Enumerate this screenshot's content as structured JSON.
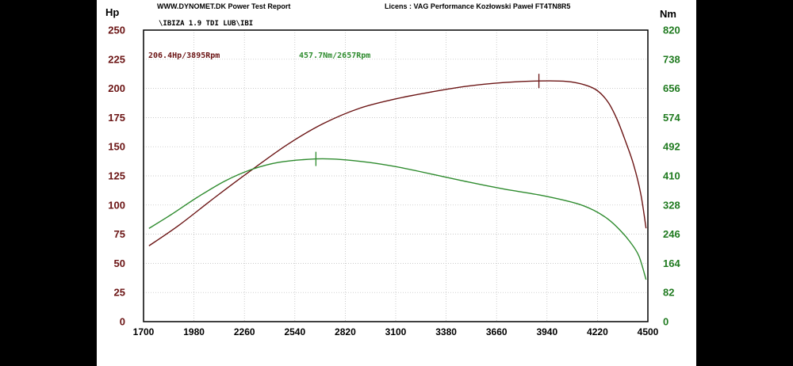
{
  "header": {
    "site": "WWW.DYNOMET.DK  Power Test Report",
    "license": "Licens :  VAG Performance Kozłowski Paweł  FT4TN8R5",
    "file": "\\IBIZA 1.9 TDI LUB\\IBI"
  },
  "annotations": {
    "power_peak": "206.4Hp/3895Rpm",
    "torque_peak": "457.7Nm/2657Rpm"
  },
  "axes": {
    "left_unit": "Hp",
    "right_unit": "Nm",
    "left_ticks": [
      "250",
      "225",
      "200",
      "175",
      "150",
      "125",
      "100",
      "75",
      "50",
      "25",
      "0"
    ],
    "right_ticks": [
      "820",
      "738",
      "656",
      "574",
      "492",
      "410",
      "328",
      "246",
      "164",
      "82",
      "0"
    ],
    "x_ticks": [
      "1700",
      "1980",
      "2260",
      "2540",
      "2820",
      "3100",
      "3380",
      "3660",
      "3940",
      "4220",
      "4500"
    ]
  },
  "chart_data": {
    "type": "line",
    "xlim": [
      1700,
      4500
    ],
    "ylim_left": [
      0,
      250
    ],
    "ylim_right": [
      0,
      820
    ],
    "grid": true,
    "colors": {
      "power": "#6b1414",
      "torque": "#2e8b2e"
    },
    "series": [
      {
        "axis": "left",
        "x": [
          1730,
          1900,
          2100,
          2300,
          2500,
          2700,
          2900,
          3100,
          3300,
          3500,
          3700,
          3895,
          4050,
          4150,
          4220,
          4280,
          4330,
          4380,
          4420,
          4460,
          4490
        ],
        "y": [
          65,
          83,
          107,
          130,
          152,
          170,
          183,
          191,
          197,
          202,
          205,
          206.4,
          206,
          203,
          198,
          188,
          173,
          153,
          135,
          110,
          80
        ]
      },
      {
        "axis": "right",
        "x": [
          1730,
          1850,
          2000,
          2150,
          2300,
          2450,
          2657,
          2800,
          2950,
          3100,
          3300,
          3500,
          3700,
          3900,
          4100,
          4200,
          4280,
          4350,
          4400,
          4450,
          4490
        ],
        "y": [
          262,
          300,
          350,
          395,
          428,
          448,
          457.7,
          456,
          448,
          436,
          415,
          393,
          373,
          356,
          333,
          313,
          288,
          255,
          225,
          185,
          118
        ]
      }
    ],
    "markers": [
      {
        "series": 0,
        "x": 3895,
        "y": 206.4
      },
      {
        "series": 1,
        "x": 2657,
        "y": 457.7
      }
    ]
  }
}
